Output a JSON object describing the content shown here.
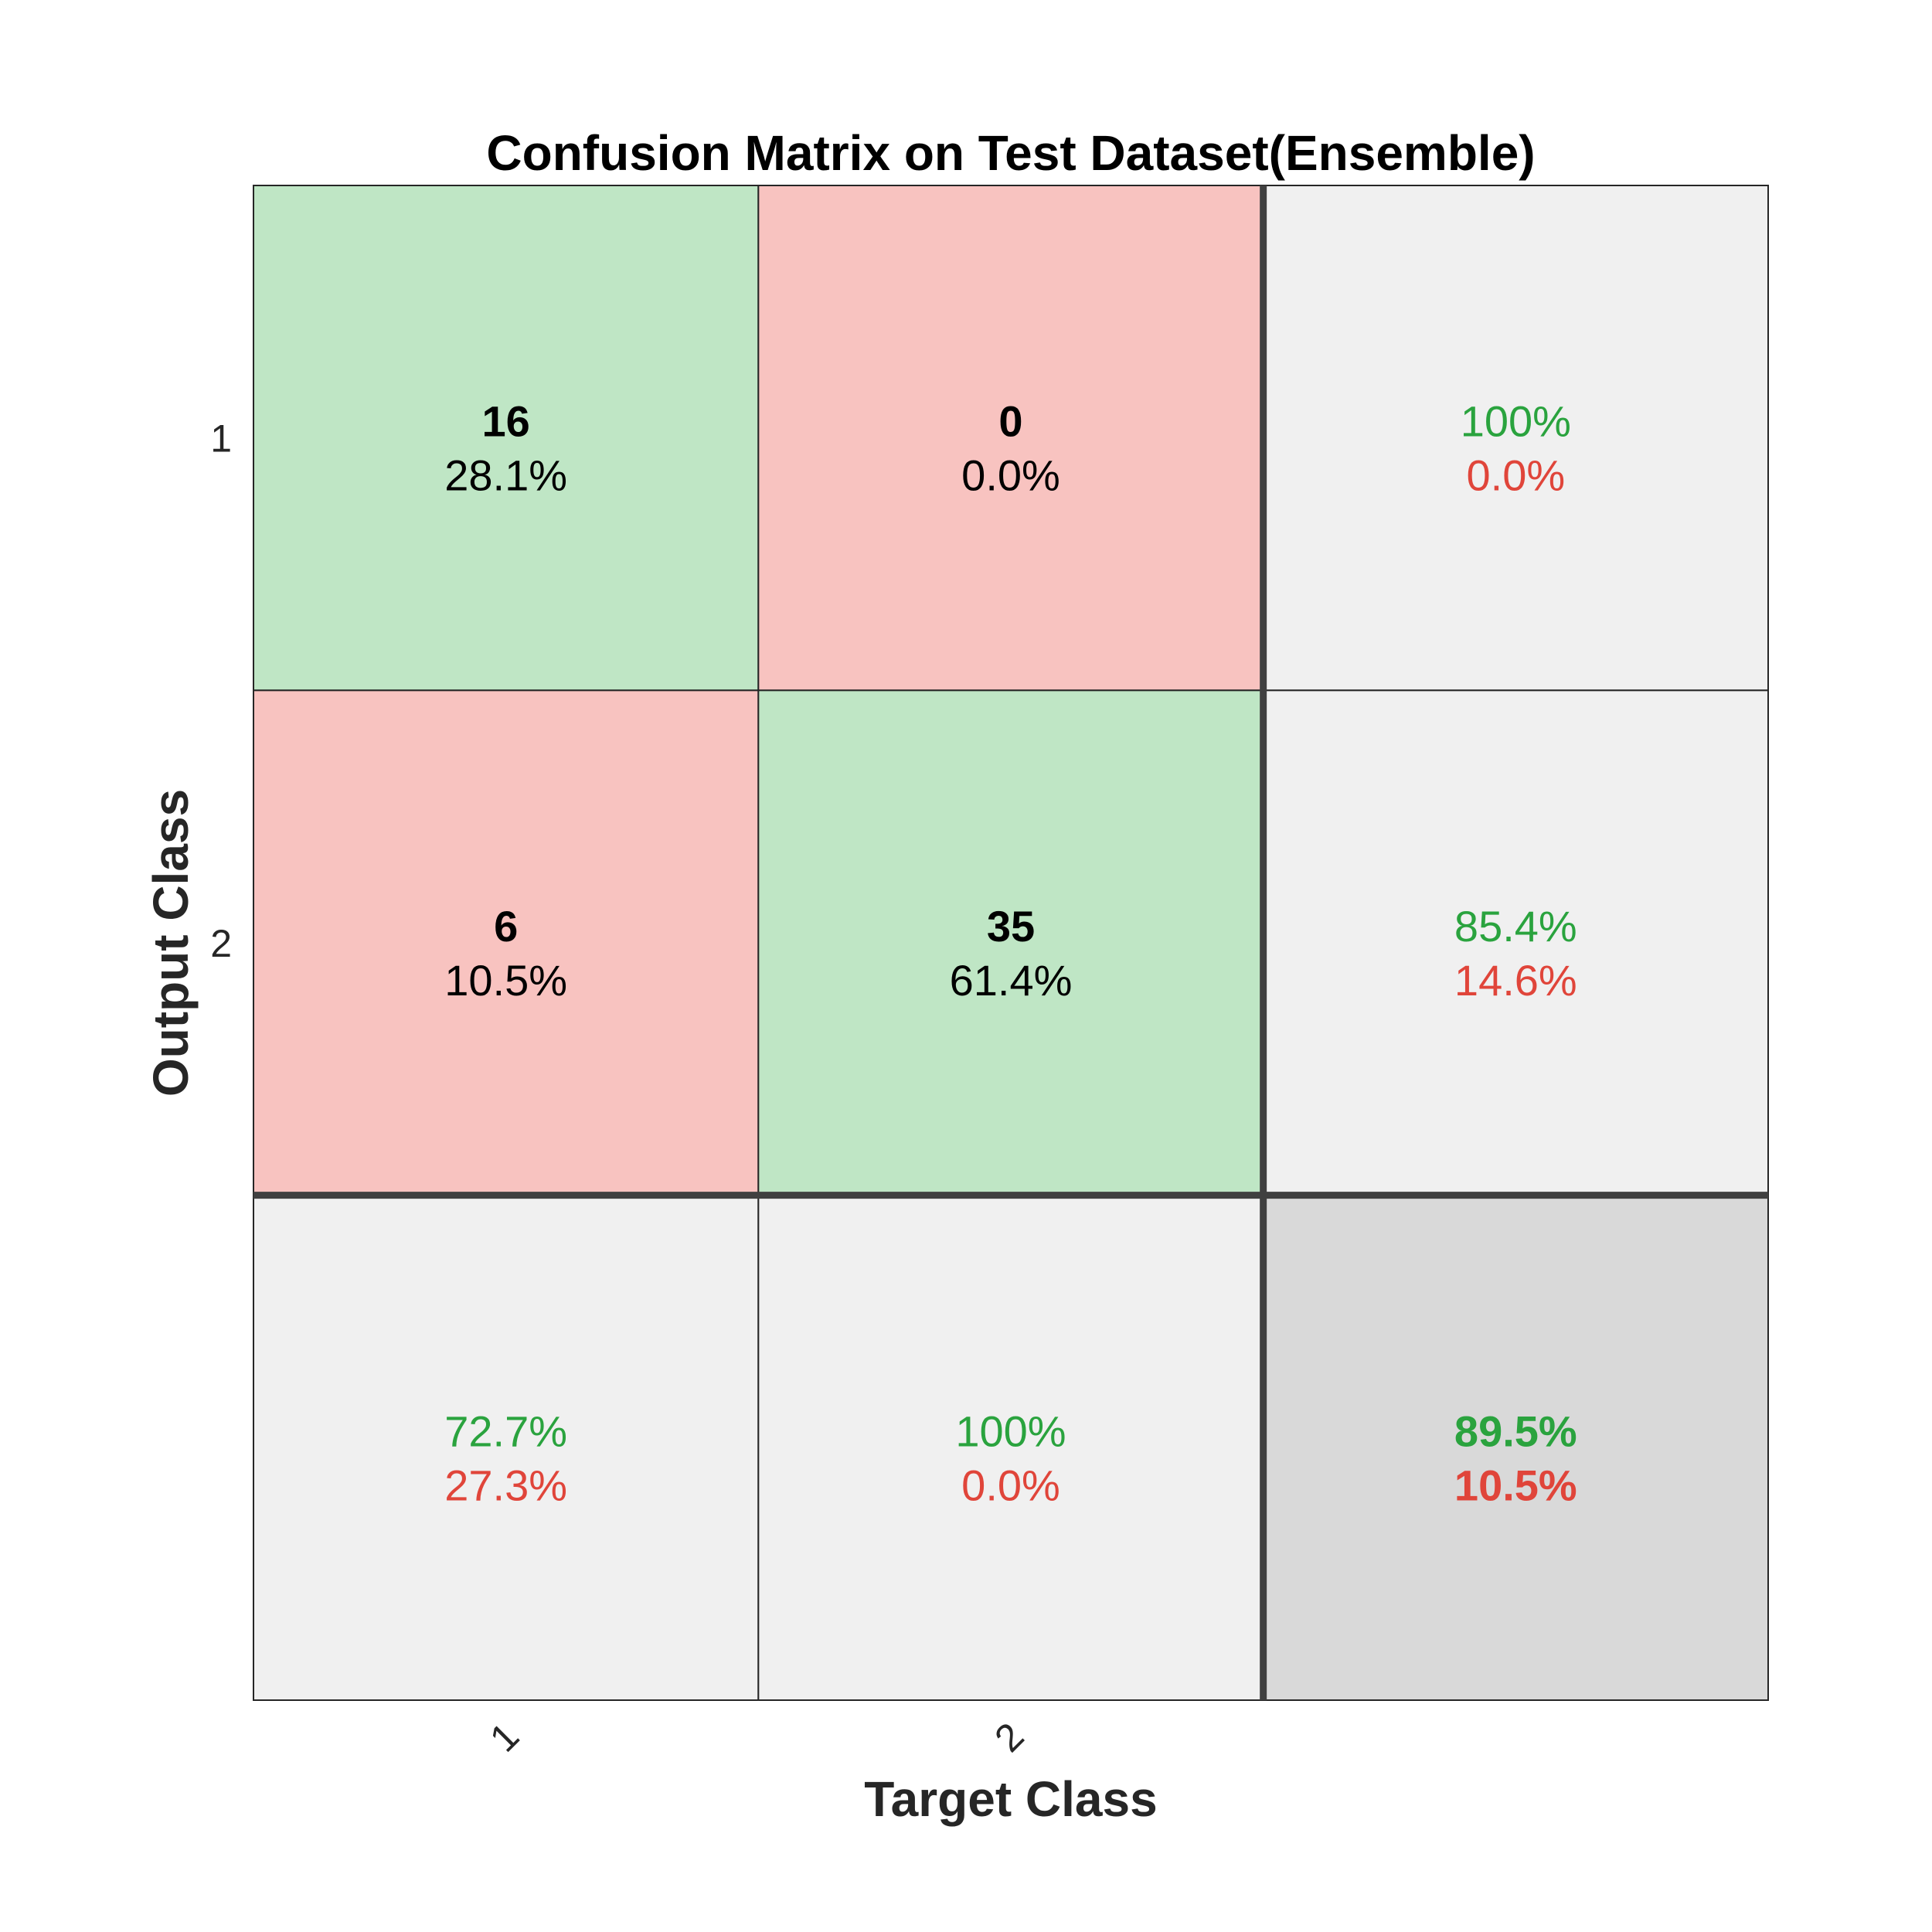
{
  "chart_data": {
    "type": "heatmap",
    "title": "Confusion Matrix on Test Dataset(Ensemble)",
    "xlabel": "Target Class",
    "ylabel": "Output Class",
    "target_classes": [
      "1",
      "2"
    ],
    "output_classes": [
      "1",
      "2"
    ],
    "counts": [
      [
        16,
        0
      ],
      [
        6,
        35
      ]
    ],
    "percent_of_total": [
      [
        "28.1%",
        "0.0%"
      ],
      [
        "10.5%",
        "61.4%"
      ]
    ],
    "row_summary": [
      {
        "correct": "100%",
        "incorrect": "0.0%"
      },
      {
        "correct": "85.4%",
        "incorrect": "14.6%"
      }
    ],
    "column_summary": [
      {
        "correct": "72.7%",
        "incorrect": "27.3%"
      },
      {
        "correct": "100%",
        "incorrect": "0.0%"
      }
    ],
    "overall": {
      "correct": "89.5%",
      "incorrect": "10.5%"
    },
    "colors": {
      "correct_fill": "#bfe6c5",
      "incorrect_fill": "#f8c3c0",
      "summary_fill": "#f0f0f0",
      "overall_fill": "#d9d9d9",
      "correct_text": "#2aa33e",
      "incorrect_text": "#e0453a"
    }
  }
}
